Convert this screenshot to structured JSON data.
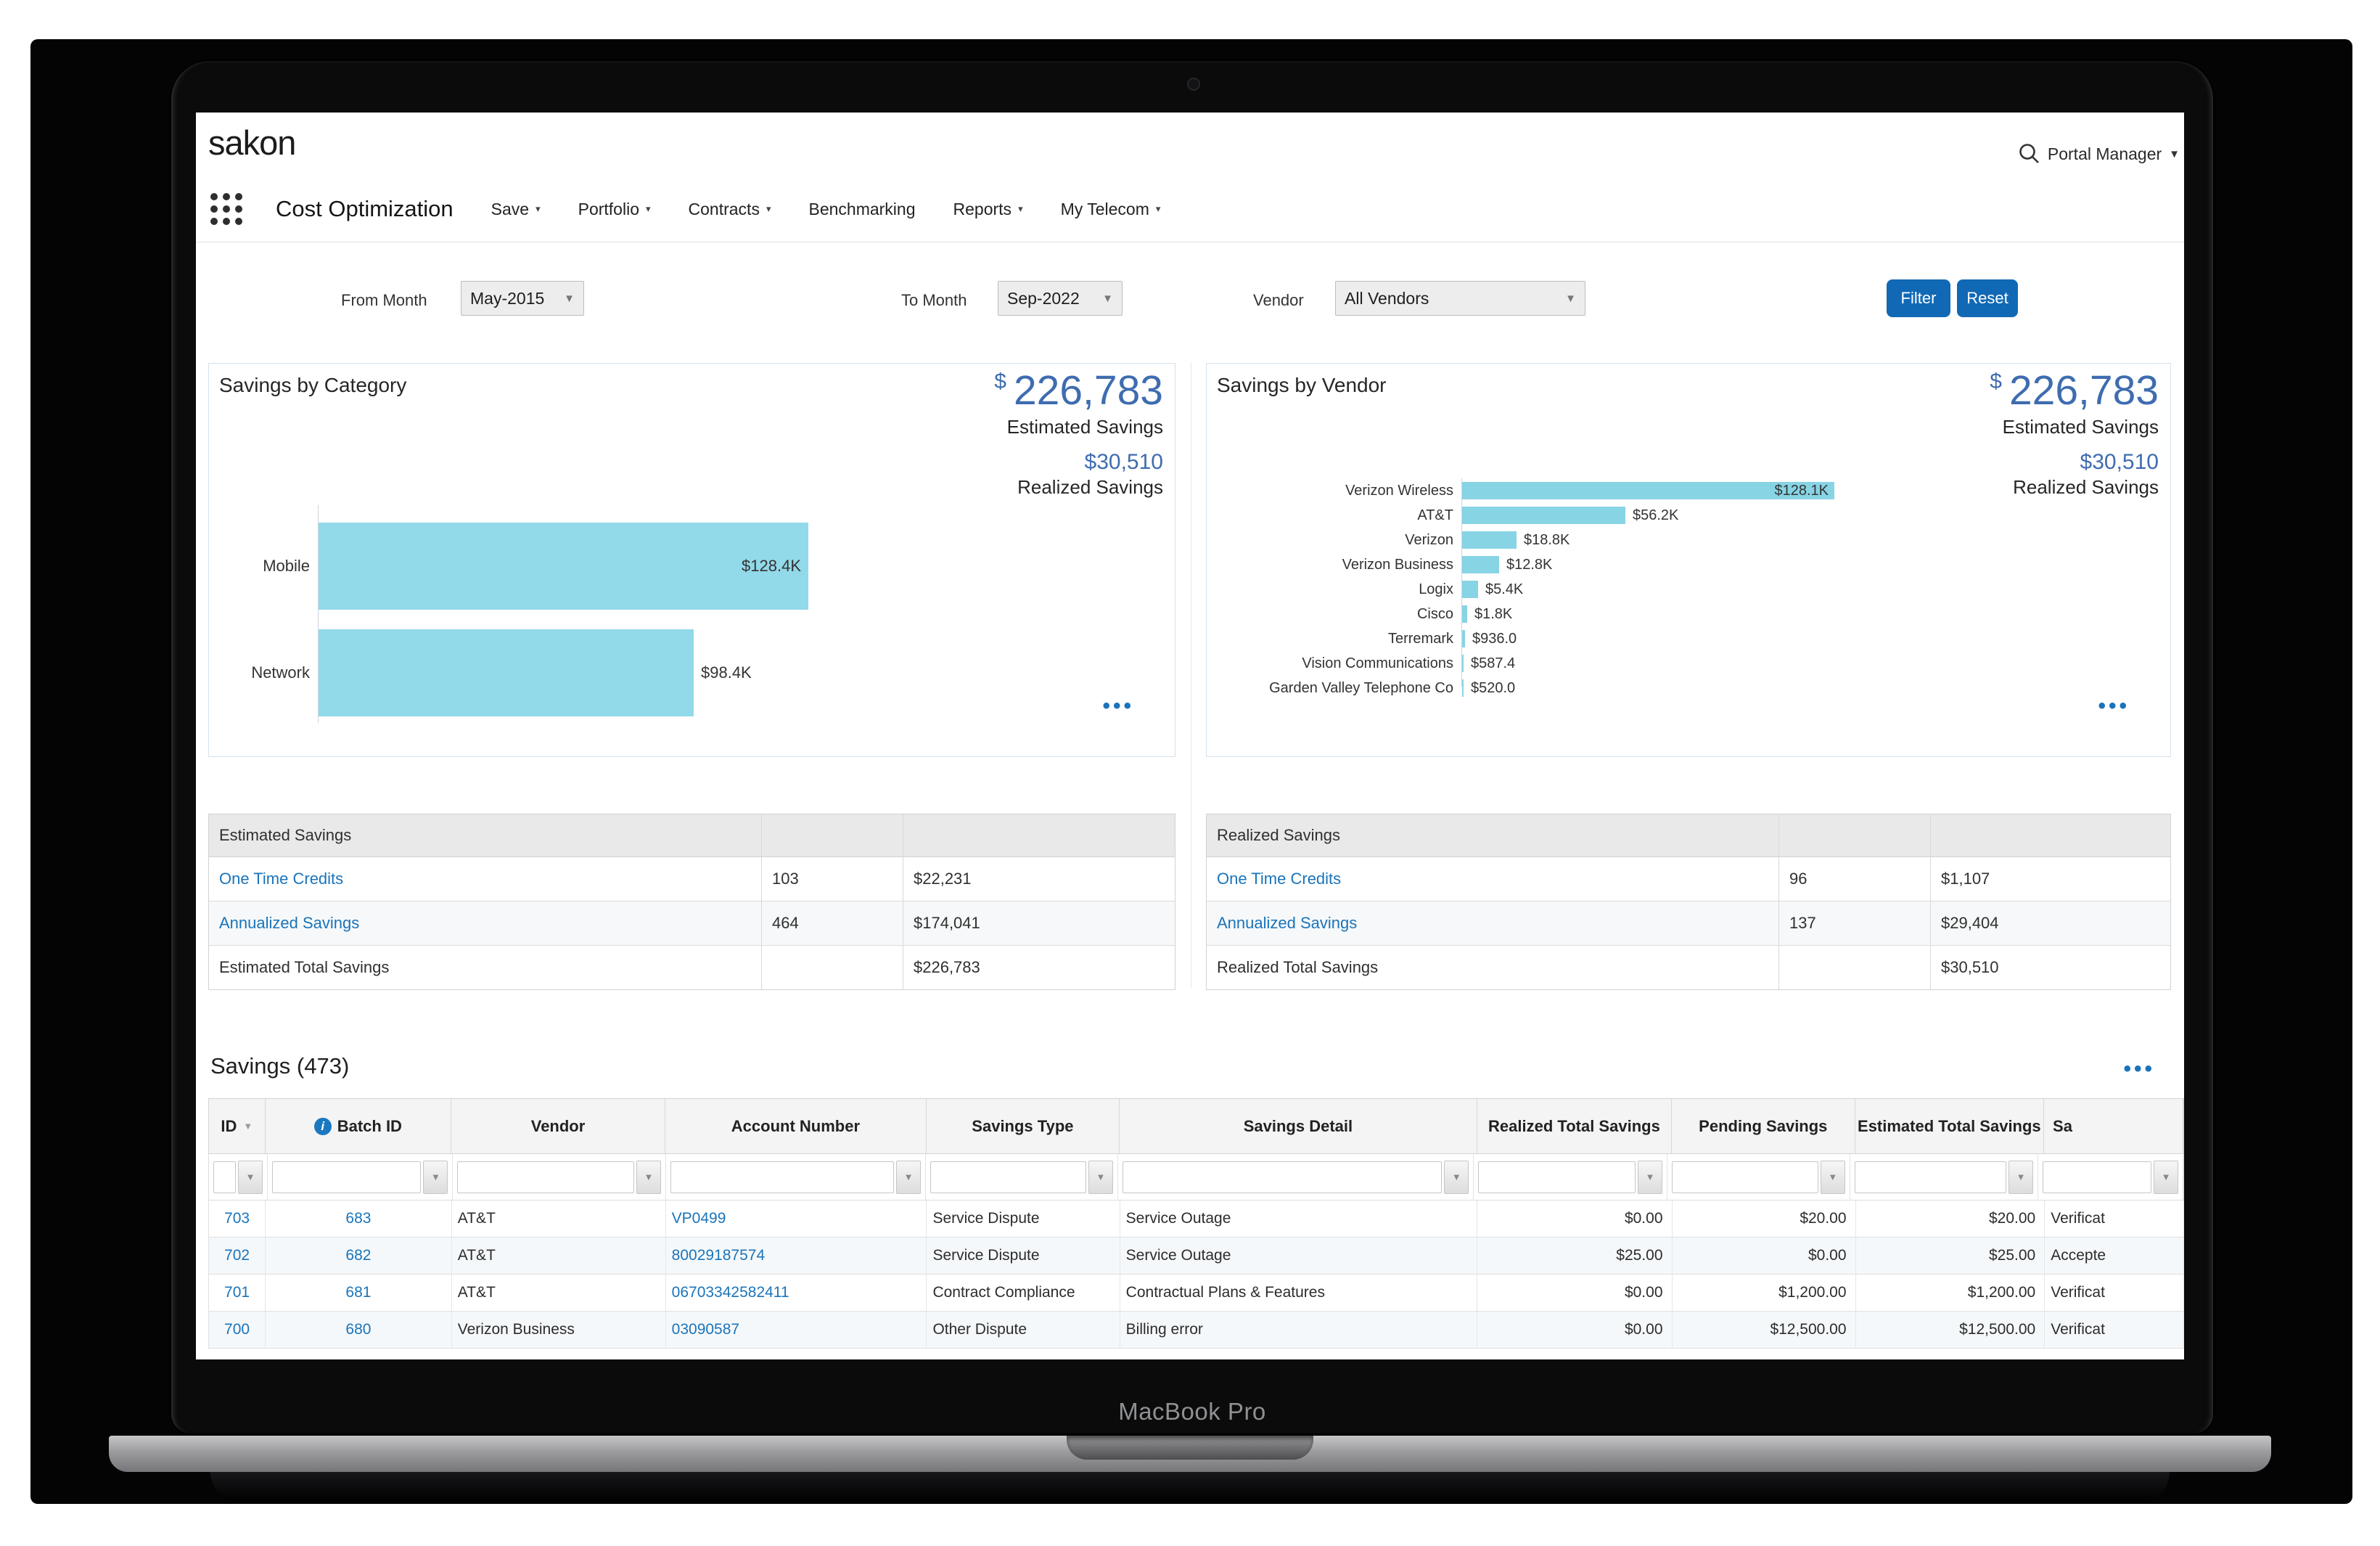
{
  "device": {
    "label": "MacBook Pro"
  },
  "header": {
    "logo": "sakon",
    "user_menu_label": "Portal Manager"
  },
  "icons": {
    "caret_down": "▾",
    "sort_down": "▼",
    "more_options": "•••",
    "info": "i"
  },
  "nav": {
    "app_title": "Cost Optimization",
    "items": [
      {
        "label": "Save",
        "dropdown": true
      },
      {
        "label": "Portfolio",
        "dropdown": true
      },
      {
        "label": "Contracts",
        "dropdown": true
      },
      {
        "label": "Benchmarking",
        "dropdown": false
      },
      {
        "label": "Reports",
        "dropdown": true
      },
      {
        "label": "My Telecom",
        "dropdown": true
      }
    ]
  },
  "filters": {
    "from_month": {
      "label": "From Month",
      "value": "May-2015"
    },
    "to_month": {
      "label": "To Month",
      "value": "Sep-2022"
    },
    "vendor": {
      "label": "Vendor",
      "value": "All Vendors"
    },
    "filter_button": "Filter",
    "reset_button": "Reset"
  },
  "kpi": {
    "currency": "$",
    "estimated_value": "226,783",
    "estimated_label": "Estimated Savings",
    "realized_value": "$30,510",
    "realized_label": "Realized Savings"
  },
  "chart_data": [
    {
      "type": "bar",
      "orientation": "horizontal",
      "title": "Savings by Category",
      "categories": [
        "Mobile",
        "Network"
      ],
      "values": [
        128400,
        98400
      ],
      "value_labels": [
        "$128.4K",
        "$98.4K"
      ],
      "label_inside": [
        true,
        false
      ],
      "bar_color": "#92d9e9",
      "xlim": [
        0,
        140000
      ],
      "grid": false,
      "legend": "none"
    },
    {
      "type": "bar",
      "orientation": "horizontal",
      "title": "Savings by Vendor",
      "categories": [
        "Verizon Wireless",
        "AT&T",
        "Verizon",
        "Verizon Business",
        "Logix",
        "Cisco",
        "Terremark",
        "Vision Communications",
        "Garden Valley Telephone Co"
      ],
      "values": [
        128100,
        56200,
        18800,
        12800,
        5400,
        1800,
        936,
        587.4,
        520
      ],
      "value_labels": [
        "$128.1K",
        "$56.2K",
        "$18.8K",
        "$12.8K",
        "$5.4K",
        "$1.8K",
        "$936.0",
        "$587.4",
        "$520.0"
      ],
      "label_inside": [
        true,
        false,
        false,
        false,
        false,
        false,
        false,
        false,
        false
      ],
      "bar_color": "#87d4e5",
      "xlim": [
        0,
        140000
      ],
      "grid": false,
      "legend": "none"
    }
  ],
  "summary_tables": [
    {
      "header": "Estimated Savings",
      "rows": [
        {
          "name": "One Time Credits",
          "link": true,
          "count": "103",
          "amount": "$22,231"
        },
        {
          "name": "Annualized Savings",
          "link": true,
          "count": "464",
          "amount": "$174,041"
        },
        {
          "name": "Estimated Total Savings",
          "link": false,
          "count": "",
          "amount": "$226,783"
        }
      ]
    },
    {
      "header": "Realized Savings",
      "rows": [
        {
          "name": "One Time Credits",
          "link": true,
          "count": "96",
          "amount": "$1,107"
        },
        {
          "name": "Annualized Savings",
          "link": true,
          "count": "137",
          "amount": "$29,404"
        },
        {
          "name": "Realized Total Savings",
          "link": false,
          "count": "",
          "amount": "$30,510"
        }
      ]
    }
  ],
  "savings_table": {
    "title": "Savings (473)",
    "columns": [
      "ID",
      "Batch ID",
      "Vendor",
      "Account Number",
      "Savings Type",
      "Savings Detail",
      "Realized Total Savings",
      "Pending Savings",
      "Estimated Total Savings",
      "Sa"
    ],
    "rows": [
      [
        "703",
        "683",
        "AT&T",
        "VP0499",
        "Service Dispute",
        "Service Outage",
        "$0.00",
        "$20.00",
        "$20.00",
        "Verificat"
      ],
      [
        "702",
        "682",
        "AT&T",
        "80029187574",
        "Service Dispute",
        "Service Outage",
        "$25.00",
        "$0.00",
        "$25.00",
        "Accepte"
      ],
      [
        "701",
        "681",
        "AT&T",
        "06703342582411",
        "Contract Compliance",
        "Contractual Plans & Features",
        "$0.00",
        "$1,200.00",
        "$1,200.00",
        "Verificat"
      ],
      [
        "700",
        "680",
        "Verizon Business",
        "03090587",
        "Other Dispute",
        "Billing error",
        "$0.00",
        "$12,500.00",
        "$12,500.00",
        "Verificat"
      ]
    ]
  },
  "colors": {
    "accent_blue": "#1b74ba",
    "kpi_blue": "#3f6cb0",
    "button_blue": "#1169b6",
    "category_bar": "#92d9e9",
    "vendor_bar": "#87d4e5"
  }
}
